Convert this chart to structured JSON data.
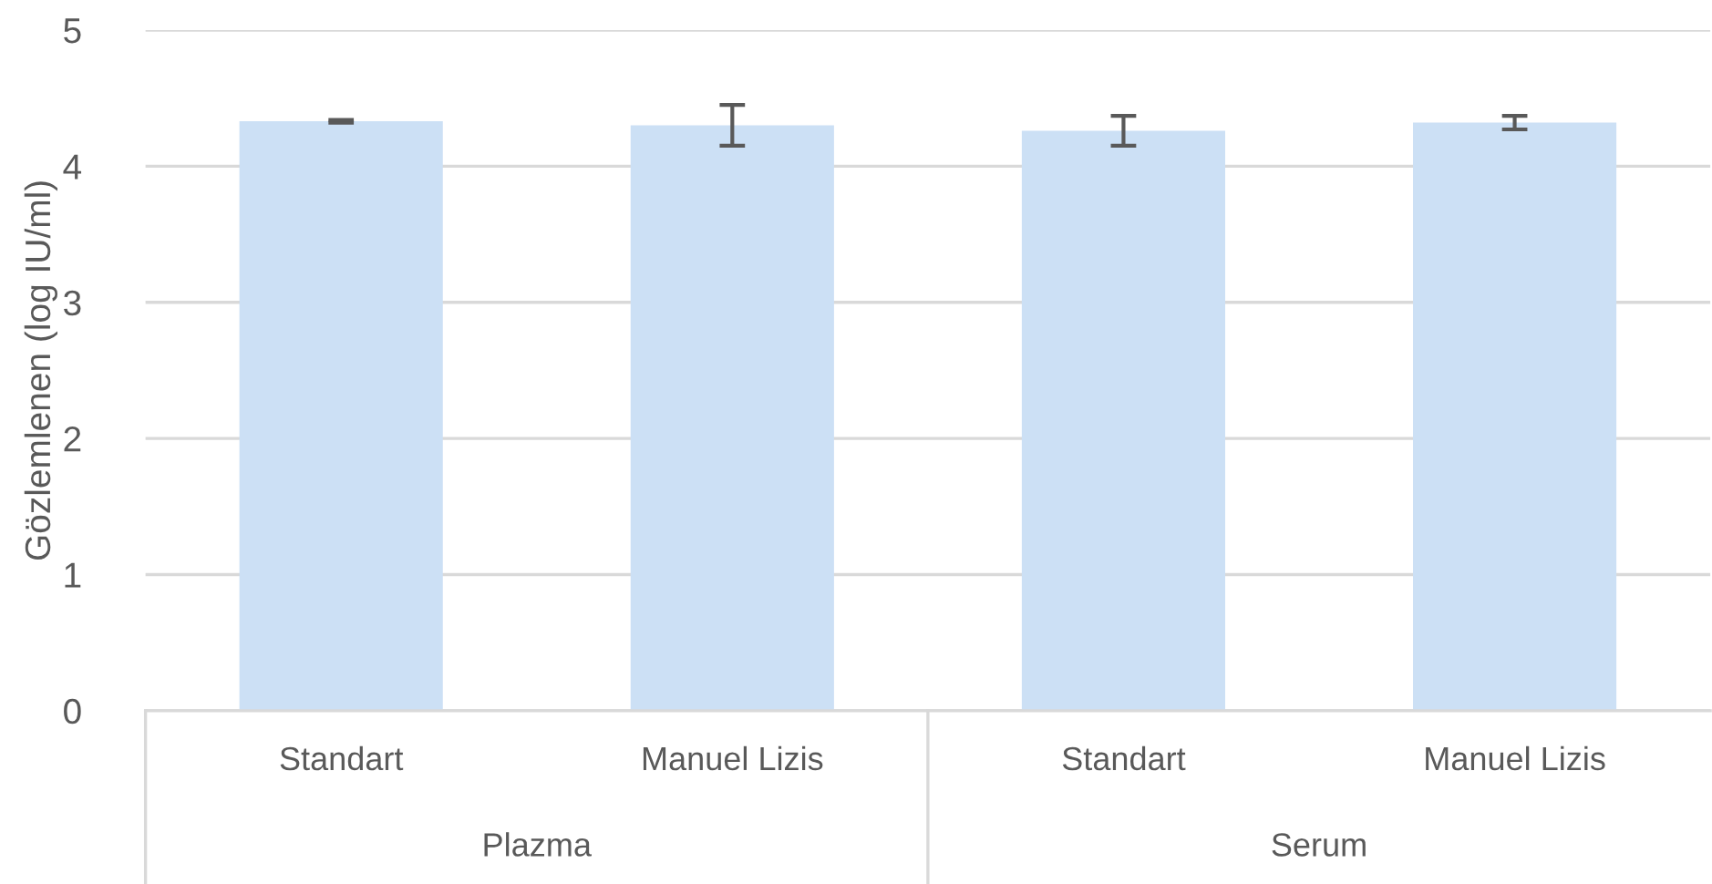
{
  "chart_data": {
    "type": "bar",
    "ylabel": "Gözlemlenen (log IU/ml)",
    "categories": [
      "Standart",
      "Manuel Lizis",
      "Standart",
      "Manuel Lizis"
    ],
    "values": [
      4.33,
      4.3,
      4.26,
      4.32
    ],
    "errors": [
      0.01,
      0.15,
      0.11,
      0.05
    ],
    "color": "#cce0f5",
    "ylim": [
      0,
      5
    ],
    "yticks": [
      0,
      1,
      2,
      3,
      4,
      5
    ],
    "grid": "y",
    "annotations": [
      "Plazma",
      "Serum"
    ]
  }
}
